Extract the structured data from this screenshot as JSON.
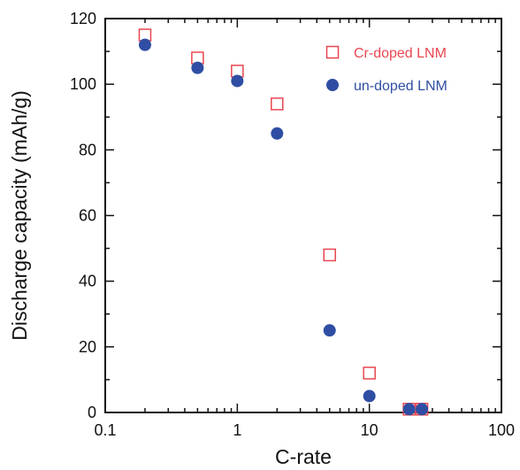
{
  "chart_data": {
    "type": "scatter",
    "title": "",
    "xlabel": "C-rate",
    "ylabel": "Discharge capacity (mAh/g)",
    "xscale": "log",
    "xlim": [
      0.1,
      100
    ],
    "ylim": [
      0,
      120
    ],
    "x_ticks": [
      0.1,
      1,
      10,
      100
    ],
    "x_tick_labels": [
      "0.1",
      "1",
      "10",
      "100"
    ],
    "y_ticks": [
      0,
      20,
      40,
      60,
      80,
      100,
      120
    ],
    "y_tick_labels": [
      "0",
      "20",
      "40",
      "60",
      "80",
      "100",
      "120"
    ],
    "grid": false,
    "legend_position": "top-right",
    "series": [
      {
        "name": "Cr-doped LNM",
        "marker": "open-square",
        "color": "#e8464f",
        "x": [
          0.2,
          0.5,
          1,
          2,
          5,
          10,
          20,
          25
        ],
        "y": [
          115,
          108,
          104,
          94,
          48,
          12,
          1,
          1
        ]
      },
      {
        "name": "un-doped LNM",
        "marker": "filled-circle",
        "color": "#2f4ea3",
        "x": [
          0.2,
          0.5,
          1,
          2,
          5,
          10,
          20,
          25
        ],
        "y": [
          112,
          105,
          101,
          85,
          25,
          5,
          1,
          1
        ]
      }
    ]
  }
}
